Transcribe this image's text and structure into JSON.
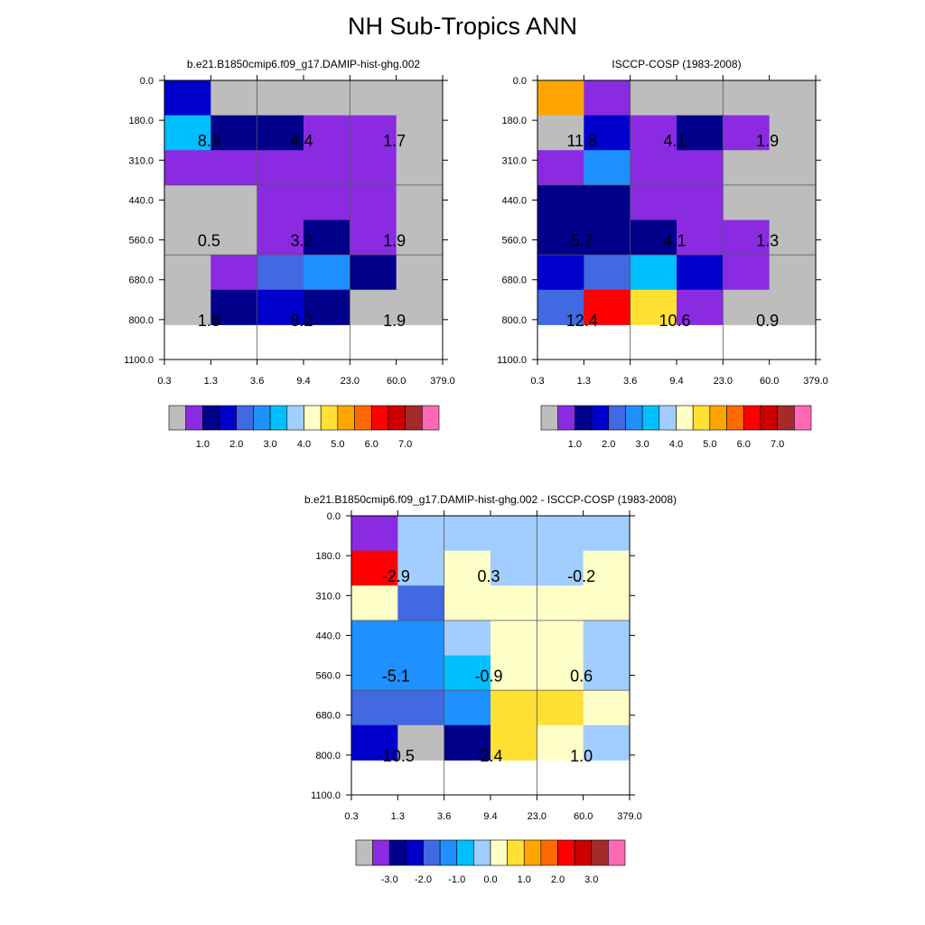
{
  "title": "NH Sub-Tropics ANN",
  "colors": {
    "abs": [
      "#bdbdbd",
      "#8a2be2",
      "#00008b",
      "#0000cd",
      "#4169e1",
      "#1e90ff",
      "#00bfff",
      "#a2cdff",
      "#ffffc8",
      "#ffe033",
      "#ffa500",
      "#ff6a00",
      "#ff0000",
      "#cc0000",
      "#a52a2a",
      "#ff69b4"
    ],
    "diff": [
      "#bdbdbd",
      "#8a2be2",
      "#00008b",
      "#0000cd",
      "#4169e1",
      "#1e90ff",
      "#00bfff",
      "#a2cdff",
      "#ffffc8",
      "#ffe033",
      "#ffa500",
      "#ff6a00",
      "#ff0000",
      "#cc0000",
      "#a52a2a",
      "#ff69b4"
    ]
  },
  "chart_data": [
    {
      "type": "heatmap",
      "title": "b.e21.B1850cmip6.f09_g17.DAMIP-hist-ghg.002",
      "x_ticks": [
        "0.3",
        "1.3",
        "3.6",
        "9.4",
        "23.0",
        "60.0",
        "379.0"
      ],
      "y_ticks": [
        "0.0",
        "180.0",
        "310.0",
        "440.0",
        "560.0",
        "680.0",
        "800.0",
        "1100.0"
      ],
      "cells": [
        [
          3,
          0,
          0,
          0,
          0,
          0
        ],
        [
          6,
          2,
          2,
          1,
          1,
          0
        ],
        [
          1,
          1,
          1,
          1,
          1,
          0
        ],
        [
          0,
          0,
          1,
          1,
          1,
          0
        ],
        [
          0,
          0,
          1,
          2,
          1,
          0
        ],
        [
          0,
          1,
          4,
          5,
          2,
          0
        ],
        [
          0,
          2,
          3,
          2,
          0,
          0
        ]
      ],
      "annotations": [
        {
          "text": "8.9",
          "x": 0,
          "y": 0
        },
        {
          "text": "4.4",
          "x": 1,
          "y": 0
        },
        {
          "text": "1.7",
          "x": 2,
          "y": 0
        },
        {
          "text": "0.5",
          "x": 0,
          "y": 1
        },
        {
          "text": "3.2",
          "x": 1,
          "y": 1
        },
        {
          "text": "1.9",
          "x": 2,
          "y": 1
        },
        {
          "text": "1.8",
          "x": 0,
          "y": 2
        },
        {
          "text": "8.2",
          "x": 1,
          "y": 2
        },
        {
          "text": "1.9",
          "x": 2,
          "y": 2
        }
      ],
      "colorbar": {
        "palette": "abs",
        "labels": [
          "1.0",
          "2.0",
          "3.0",
          "4.0",
          "5.0",
          "6.0",
          "7.0"
        ]
      }
    },
    {
      "type": "heatmap",
      "title": "ISCCP-COSP (1983-2008)",
      "x_ticks": [
        "0.3",
        "1.3",
        "3.6",
        "9.4",
        "23.0",
        "60.0",
        "379.0"
      ],
      "y_ticks": [
        "0.0",
        "180.0",
        "310.0",
        "440.0",
        "560.0",
        "680.0",
        "800.0",
        "1100.0"
      ],
      "cells": [
        [
          10,
          1,
          0,
          0,
          0,
          0
        ],
        [
          0,
          3,
          1,
          2,
          1,
          0
        ],
        [
          1,
          5,
          1,
          1,
          0,
          0
        ],
        [
          2,
          2,
          1,
          1,
          0,
          0
        ],
        [
          2,
          2,
          2,
          1,
          1,
          0
        ],
        [
          3,
          4,
          6,
          3,
          1,
          0
        ],
        [
          4,
          12,
          9,
          1,
          0,
          0
        ]
      ],
      "annotations": [
        {
          "text": "11.8",
          "x": 0,
          "y": 0
        },
        {
          "text": "4.1",
          "x": 1,
          "y": 0
        },
        {
          "text": "1.9",
          "x": 2,
          "y": 0
        },
        {
          "text": "5.7",
          "x": 0,
          "y": 1
        },
        {
          "text": "4.1",
          "x": 1,
          "y": 1
        },
        {
          "text": "1.3",
          "x": 2,
          "y": 1
        },
        {
          "text": "12.4",
          "x": 0,
          "y": 2
        },
        {
          "text": "10.6",
          "x": 1,
          "y": 2
        },
        {
          "text": "0.9",
          "x": 2,
          "y": 2
        }
      ],
      "colorbar": {
        "palette": "abs",
        "labels": [
          "1.0",
          "2.0",
          "3.0",
          "4.0",
          "5.0",
          "6.0",
          "7.0"
        ]
      }
    },
    {
      "type": "heatmap",
      "title": "b.e21.B1850cmip6.f09_g17.DAMIP-hist-ghg.002 - ISCCP-COSP (1983-2008)",
      "x_ticks": [
        "0.3",
        "1.3",
        "3.6",
        "9.4",
        "23.0",
        "60.0",
        "379.0"
      ],
      "y_ticks": [
        "0.0",
        "180.0",
        "310.0",
        "440.0",
        "560.0",
        "680.0",
        "800.0",
        "1100.0"
      ],
      "cells": [
        [
          1,
          7,
          7,
          7,
          7,
          7
        ],
        [
          12,
          7,
          8,
          7,
          7,
          8
        ],
        [
          8,
          4,
          8,
          8,
          8,
          8
        ],
        [
          5,
          5,
          7,
          8,
          8,
          7
        ],
        [
          5,
          5,
          6,
          8,
          8,
          7
        ],
        [
          4,
          4,
          5,
          9,
          9,
          8
        ],
        [
          3,
          0,
          2,
          9,
          8,
          7
        ]
      ],
      "annotations": [
        {
          "text": "-2.9",
          "x": 0,
          "y": 0
        },
        {
          "text": "0.3",
          "x": 1,
          "y": 0
        },
        {
          "text": "-0.2",
          "x": 2,
          "y": 0
        },
        {
          "text": "-5.1",
          "x": 0,
          "y": 1
        },
        {
          "text": "-0.9",
          "x": 1,
          "y": 1
        },
        {
          "text": "0.6",
          "x": 2,
          "y": 1
        },
        {
          "text": "-10.5",
          "x": 0,
          "y": 2
        },
        {
          "text": "-2.4",
          "x": 1,
          "y": 2
        },
        {
          "text": "1.0",
          "x": 2,
          "y": 2
        }
      ],
      "colorbar": {
        "palette": "diff",
        "labels": [
          "-3.0",
          "-2.0",
          "-1.0",
          "0.0",
          "1.0",
          "2.0",
          "3.0"
        ]
      }
    }
  ]
}
